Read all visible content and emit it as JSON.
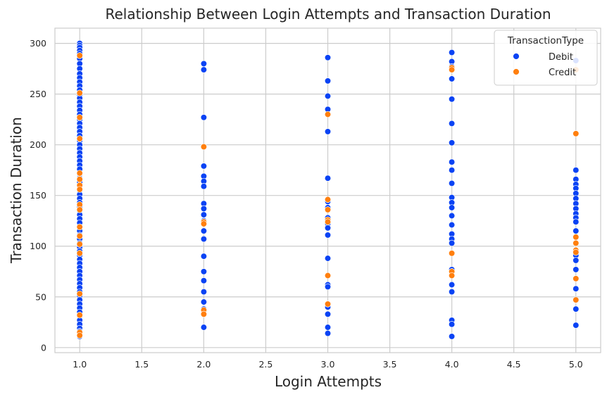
{
  "chart_data": {
    "type": "scatter",
    "title": "Relationship Between Login Attempts and Transaction Duration",
    "xlabel": "Login Attempts",
    "ylabel": "Transaction Duration",
    "xlim": [
      0.8,
      5.2
    ],
    "ylim": [
      -5,
      315
    ],
    "x_ticks": [
      "1.0",
      "1.5",
      "2.0",
      "2.5",
      "3.0",
      "3.5",
      "4.0",
      "4.5",
      "5.0"
    ],
    "y_ticks": [
      "0",
      "50",
      "100",
      "150",
      "200",
      "250",
      "300"
    ],
    "grid": true,
    "legend": {
      "title": "TransactionType",
      "position": "top-right",
      "entries": [
        {
          "label": "Debit",
          "color": "#0a43f4"
        },
        {
          "label": "Credit",
          "color": "#ff7f0e"
        }
      ]
    },
    "series": [
      {
        "name": "Debit",
        "color": "#0a43f4",
        "points": [
          [
            1,
            300
          ],
          [
            1,
            298
          ],
          [
            1,
            296
          ],
          [
            1,
            293
          ],
          [
            1,
            290
          ],
          [
            1,
            285
          ],
          [
            1,
            280
          ],
          [
            1,
            275
          ],
          [
            1,
            270
          ],
          [
            1,
            266
          ],
          [
            1,
            262
          ],
          [
            1,
            258
          ],
          [
            1,
            254
          ],
          [
            1,
            249
          ],
          [
            1,
            246
          ],
          [
            1,
            242
          ],
          [
            1,
            238
          ],
          [
            1,
            234
          ],
          [
            1,
            230
          ],
          [
            1,
            225
          ],
          [
            1,
            221
          ],
          [
            1,
            217
          ],
          [
            1,
            213
          ],
          [
            1,
            209
          ],
          [
            1,
            204
          ],
          [
            1,
            200
          ],
          [
            1,
            196
          ],
          [
            1,
            192
          ],
          [
            1,
            188
          ],
          [
            1,
            184
          ],
          [
            1,
            180
          ],
          [
            1,
            176
          ],
          [
            1,
            171
          ],
          [
            1,
            167
          ],
          [
            1,
            163
          ],
          [
            1,
            159
          ],
          [
            1,
            155
          ],
          [
            1,
            151
          ],
          [
            1,
            147
          ],
          [
            1,
            143
          ],
          [
            1,
            139
          ],
          [
            1,
            135
          ],
          [
            1,
            131
          ],
          [
            1,
            127
          ],
          [
            1,
            123
          ],
          [
            1,
            119
          ],
          [
            1,
            115
          ],
          [
            1,
            111
          ],
          [
            1,
            107
          ],
          [
            1,
            103
          ],
          [
            1,
            99
          ],
          [
            1,
            95
          ],
          [
            1,
            91
          ],
          [
            1,
            87
          ],
          [
            1,
            83
          ],
          [
            1,
            79
          ],
          [
            1,
            75
          ],
          [
            1,
            71
          ],
          [
            1,
            67
          ],
          [
            1,
            63
          ],
          [
            1,
            59
          ],
          [
            1,
            55
          ],
          [
            1,
            51
          ],
          [
            1,
            47
          ],
          [
            1,
            43
          ],
          [
            1,
            39
          ],
          [
            1,
            35
          ],
          [
            1,
            31
          ],
          [
            1,
            27
          ],
          [
            1,
            23
          ],
          [
            1,
            19
          ],
          [
            1,
            16
          ],
          [
            1,
            13
          ],
          [
            1,
            11
          ],
          [
            2,
            280
          ],
          [
            2,
            274
          ],
          [
            2,
            227
          ],
          [
            2,
            179
          ],
          [
            2,
            169
          ],
          [
            2,
            164
          ],
          [
            2,
            159
          ],
          [
            2,
            142
          ],
          [
            2,
            137
          ],
          [
            2,
            131
          ],
          [
            2,
            125
          ],
          [
            2,
            115
          ],
          [
            2,
            107
          ],
          [
            2,
            90
          ],
          [
            2,
            75
          ],
          [
            2,
            66
          ],
          [
            2,
            55
          ],
          [
            2,
            45
          ],
          [
            2,
            38
          ],
          [
            2,
            20
          ],
          [
            3,
            286
          ],
          [
            3,
            263
          ],
          [
            3,
            248
          ],
          [
            3,
            235
          ],
          [
            3,
            213
          ],
          [
            3,
            167
          ],
          [
            3,
            144
          ],
          [
            3,
            138
          ],
          [
            3,
            128
          ],
          [
            3,
            122
          ],
          [
            3,
            118
          ],
          [
            3,
            111
          ],
          [
            3,
            88
          ],
          [
            3,
            62
          ],
          [
            3,
            60
          ],
          [
            3,
            40
          ],
          [
            3,
            33
          ],
          [
            3,
            20
          ],
          [
            3,
            14
          ],
          [
            4,
            291
          ],
          [
            4,
            282
          ],
          [
            4,
            277
          ],
          [
            4,
            265
          ],
          [
            4,
            245
          ],
          [
            4,
            221
          ],
          [
            4,
            202
          ],
          [
            4,
            183
          ],
          [
            4,
            175
          ],
          [
            4,
            162
          ],
          [
            4,
            148
          ],
          [
            4,
            143
          ],
          [
            4,
            138
          ],
          [
            4,
            130
          ],
          [
            4,
            121
          ],
          [
            4,
            112
          ],
          [
            4,
            107
          ],
          [
            4,
            103
          ],
          [
            4,
            77
          ],
          [
            4,
            62
          ],
          [
            4,
            55
          ],
          [
            4,
            27
          ],
          [
            4,
            23
          ],
          [
            4,
            11
          ],
          [
            5,
            283
          ],
          [
            5,
            175
          ],
          [
            5,
            166
          ],
          [
            5,
            161
          ],
          [
            5,
            157
          ],
          [
            5,
            152
          ],
          [
            5,
            147
          ],
          [
            5,
            142
          ],
          [
            5,
            137
          ],
          [
            5,
            132
          ],
          [
            5,
            128
          ],
          [
            5,
            124
          ],
          [
            5,
            115
          ],
          [
            5,
            91
          ],
          [
            5,
            86
          ],
          [
            5,
            77
          ],
          [
            5,
            58
          ],
          [
            5,
            38
          ],
          [
            5,
            22
          ]
        ]
      },
      {
        "name": "Credit",
        "color": "#ff7f0e",
        "points": [
          [
            1,
            288
          ],
          [
            1,
            251
          ],
          [
            1,
            227
          ],
          [
            1,
            206
          ],
          [
            1,
            172
          ],
          [
            1,
            166
          ],
          [
            1,
            160
          ],
          [
            1,
            156
          ],
          [
            1,
            141
          ],
          [
            1,
            136
          ],
          [
            1,
            119
          ],
          [
            1,
            110
          ],
          [
            1,
            102
          ],
          [
            1,
            93
          ],
          [
            1,
            53
          ],
          [
            1,
            32
          ],
          [
            1,
            15
          ],
          [
            1,
            12
          ],
          [
            2,
            198
          ],
          [
            2,
            124
          ],
          [
            2,
            122
          ],
          [
            2,
            37
          ],
          [
            2,
            33
          ],
          [
            3,
            230
          ],
          [
            3,
            146
          ],
          [
            3,
            136
          ],
          [
            3,
            126
          ],
          [
            3,
            124
          ],
          [
            3,
            71
          ],
          [
            3,
            43
          ],
          [
            4,
            276
          ],
          [
            4,
            274
          ],
          [
            4,
            93
          ],
          [
            4,
            75
          ],
          [
            4,
            71
          ],
          [
            5,
            274
          ],
          [
            5,
            211
          ],
          [
            5,
            109
          ],
          [
            5,
            103
          ],
          [
            5,
            96
          ],
          [
            5,
            94
          ],
          [
            5,
            68
          ],
          [
            5,
            47
          ]
        ]
      }
    ]
  }
}
